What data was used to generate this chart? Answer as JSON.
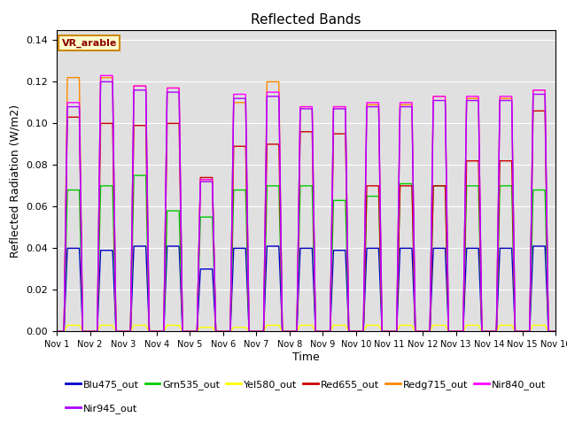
{
  "title": "Reflected Bands",
  "xlabel": "Time",
  "ylabel": "Reflected Radiation (W/m2)",
  "xlim_start": 0,
  "xlim_end": 15,
  "ylim": [
    0,
    0.145
  ],
  "yticks": [
    0.0,
    0.02,
    0.04,
    0.06,
    0.08,
    0.1,
    0.12,
    0.14
  ],
  "xtick_labels": [
    "Nov 1",
    "Nov 2",
    "Nov 3",
    "Nov 4",
    "Nov 5",
    "Nov 6",
    "Nov 7",
    "Nov 8",
    "Nov 9",
    "Nov 10",
    "Nov 11",
    "Nov 12",
    "Nov 13",
    "Nov 14",
    "Nov 15",
    "Nov 16"
  ],
  "annotation_text": "VR_arable",
  "series": [
    {
      "name": "Blu475_out",
      "color": "#0000cc",
      "lw": 1.0
    },
    {
      "name": "Grn535_out",
      "color": "#00cc00",
      "lw": 1.0
    },
    {
      "name": "Yel580_out",
      "color": "#ffff00",
      "lw": 1.0
    },
    {
      "name": "Red655_out",
      "color": "#cc0000",
      "lw": 1.0
    },
    {
      "name": "Redg715_out",
      "color": "#ff8800",
      "lw": 1.0
    },
    {
      "name": "Nir840_out",
      "color": "#ff00ff",
      "lw": 1.0
    },
    {
      "name": "Nir945_out",
      "color": "#aa00ff",
      "lw": 1.0
    }
  ],
  "day_peaks": {
    "Blu475_out": [
      0.04,
      0.039,
      0.041,
      0.041,
      0.03,
      0.04,
      0.041,
      0.04,
      0.039,
      0.04,
      0.04,
      0.04,
      0.04,
      0.04,
      0.041
    ],
    "Grn535_out": [
      0.068,
      0.07,
      0.075,
      0.058,
      0.055,
      0.068,
      0.07,
      0.07,
      0.063,
      0.065,
      0.071,
      0.07,
      0.07,
      0.07,
      0.068
    ],
    "Yel580_out": [
      0.003,
      0.003,
      0.003,
      0.003,
      0.002,
      0.002,
      0.003,
      0.003,
      0.003,
      0.003,
      0.003,
      0.003,
      0.003,
      0.003,
      0.003
    ],
    "Red655_out": [
      0.103,
      0.1,
      0.099,
      0.1,
      0.074,
      0.089,
      0.09,
      0.096,
      0.095,
      0.07,
      0.07,
      0.07,
      0.082,
      0.082,
      0.106
    ],
    "Redg715_out": [
      0.122,
      0.122,
      0.118,
      0.117,
      0.073,
      0.11,
      0.12,
      0.108,
      0.108,
      0.109,
      0.109,
      0.113,
      0.112,
      0.112,
      0.116
    ],
    "Nir840_out": [
      0.11,
      0.123,
      0.118,
      0.117,
      0.073,
      0.114,
      0.115,
      0.108,
      0.108,
      0.11,
      0.11,
      0.113,
      0.113,
      0.113,
      0.116
    ],
    "Nir945_out": [
      0.108,
      0.12,
      0.116,
      0.115,
      0.072,
      0.112,
      0.113,
      0.107,
      0.107,
      0.108,
      0.108,
      0.111,
      0.111,
      0.111,
      0.114
    ]
  },
  "background_color": "#e0e0e0",
  "grid_color": "#ffffff",
  "legend_ncol": 6,
  "figsize": [
    6.4,
    4.8
  ],
  "dpi": 100
}
